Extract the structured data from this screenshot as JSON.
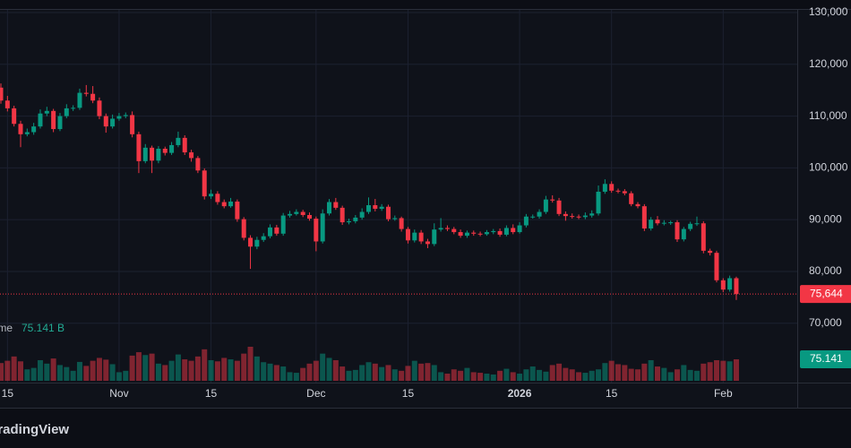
{
  "chart_data": {
    "type": "candlestick",
    "categories": [
      "Oct 14",
      "Oct 15",
      "Oct 16",
      "Oct 17",
      "Oct 18",
      "Oct 19",
      "Oct 20",
      "Oct 21",
      "Oct 22",
      "Oct 23",
      "Oct 24",
      "Oct 25",
      "Oct 26",
      "Oct 27",
      "Oct 28",
      "Oct 29",
      "Oct 30",
      "Oct 31",
      "Nov 1",
      "Nov 2",
      "Nov 3",
      "Nov 4",
      "Nov 5",
      "Nov 6",
      "Nov 7",
      "Nov 8",
      "Nov 9",
      "Nov 10",
      "Nov 11",
      "Nov 12",
      "Nov 13",
      "Nov 14",
      "Nov 15",
      "Nov 16",
      "Nov 17",
      "Nov 18",
      "Nov 19",
      "Nov 20",
      "Nov 21",
      "Nov 22",
      "Nov 23",
      "Nov 24",
      "Nov 25",
      "Nov 26",
      "Nov 27",
      "Nov 28",
      "Nov 29",
      "Nov 30",
      "Dec 1",
      "Dec 2",
      "Dec 3",
      "Dec 4",
      "Dec 5",
      "Dec 6",
      "Dec 7",
      "Dec 8",
      "Dec 9",
      "Dec 10",
      "Dec 11",
      "Dec 12",
      "Dec 13",
      "Dec 14",
      "Dec 15",
      "Dec 16",
      "Dec 17",
      "Dec 18",
      "Dec 19",
      "Dec 20",
      "Dec 21",
      "Dec 22",
      "Dec 23",
      "Dec 24",
      "Dec 25",
      "Dec 26",
      "Dec 27",
      "Dec 28",
      "Dec 29",
      "Dec 30",
      "Dec 31",
      "Jan 1",
      "Jan 2",
      "Jan 3",
      "Jan 4",
      "Jan 5",
      "Jan 6",
      "Jan 7",
      "Jan 8",
      "Jan 9",
      "Jan 10",
      "Jan 11",
      "Jan 12",
      "Jan 13",
      "Jan 14",
      "Jan 15",
      "Jan 16",
      "Jan 17",
      "Jan 18",
      "Jan 19",
      "Jan 20",
      "Jan 21",
      "Jan 22",
      "Jan 23",
      "Jan 24",
      "Jan 25",
      "Jan 26",
      "Jan 27",
      "Jan 28",
      "Jan 29",
      "Jan 30",
      "Jan 31",
      "Feb 1",
      "Feb 2",
      "Feb 3"
    ],
    "open": [
      115500,
      113000,
      111500,
      108500,
      106500,
      106900,
      108000,
      110500,
      111000,
      107500,
      110000,
      111500,
      111600,
      114500,
      114300,
      113000,
      110000,
      108000,
      109500,
      110000,
      110200,
      106500,
      101300,
      103900,
      101400,
      103700,
      102900,
      104400,
      105800,
      103000,
      101900,
      99500,
      94500,
      95000,
      93400,
      92600,
      93500,
      90100,
      86500,
      84800,
      86100,
      86800,
      88500,
      87300,
      90800,
      91100,
      91500,
      90900,
      90200,
      85800,
      91200,
      93400,
      92300,
      89500,
      89700,
      90400,
      91500,
      92800,
      92100,
      92500,
      90100,
      90300,
      88200,
      86000,
      87500,
      85800,
      85300,
      88100,
      88400,
      88200,
      87600,
      86900,
      87500,
      87300,
      87200,
      87600,
      87800,
      87100,
      88400,
      87600,
      88900,
      90600,
      90600,
      91500,
      93900,
      93700,
      91100,
      90700,
      90600,
      90500,
      90800,
      91200,
      95400,
      96900,
      95600,
      95500,
      95100,
      93000,
      92600,
      88300,
      90000,
      89300,
      89400,
      89500,
      86200,
      88200,
      89200,
      89300,
      84000,
      83600,
      78300,
      76500,
      78700
    ],
    "high": [
      116300,
      113900,
      112000,
      109100,
      107600,
      108700,
      111300,
      111800,
      111400,
      110600,
      112300,
      112100,
      115300,
      116000,
      115800,
      113600,
      110500,
      110300,
      110600,
      110700,
      110900,
      107000,
      104600,
      104300,
      104200,
      104100,
      105000,
      107000,
      106300,
      103500,
      102300,
      99900,
      95800,
      95500,
      93900,
      94200,
      93900,
      90500,
      87000,
      86700,
      87400,
      89100,
      89000,
      91300,
      91700,
      92000,
      91900,
      91400,
      90600,
      92000,
      94000,
      94200,
      92700,
      90200,
      90900,
      92200,
      94300,
      94000,
      93000,
      92900,
      90800,
      90600,
      88600,
      88100,
      88000,
      86300,
      89300,
      90300,
      88900,
      88600,
      88100,
      87900,
      87900,
      87700,
      88000,
      88200,
      88300,
      88900,
      89100,
      89500,
      91100,
      91000,
      92000,
      94600,
      94700,
      94200,
      91600,
      91200,
      91000,
      91400,
      91800,
      96600,
      97800,
      97400,
      96000,
      95900,
      95500,
      93400,
      93000,
      90500,
      90700,
      89900,
      89800,
      89900,
      88600,
      89600,
      90600,
      89700,
      84400,
      84000,
      78700,
      79200,
      79000
    ],
    "low": [
      112400,
      110900,
      108000,
      104000,
      106100,
      106400,
      107600,
      110000,
      106900,
      107100,
      109600,
      111000,
      111200,
      113800,
      112500,
      109400,
      106800,
      107600,
      109100,
      109600,
      105900,
      99000,
      100900,
      99000,
      100900,
      102400,
      102500,
      104000,
      102500,
      101200,
      99000,
      93900,
      94000,
      92900,
      92200,
      92300,
      89600,
      86000,
      80500,
      84300,
      85700,
      86400,
      86900,
      86900,
      90400,
      90800,
      90500,
      89800,
      83900,
      85400,
      90800,
      91900,
      89000,
      89100,
      89300,
      90000,
      91100,
      91600,
      91700,
      89700,
      89800,
      87700,
      85400,
      85600,
      85300,
      84500,
      84900,
      87700,
      87800,
      87200,
      86500,
      86500,
      86900,
      86800,
      86900,
      87200,
      86700,
      86800,
      87200,
      87300,
      88500,
      90200,
      90200,
      91100,
      93300,
      90700,
      89800,
      90200,
      90100,
      90100,
      90400,
      90800,
      95000,
      95200,
      95100,
      94700,
      92600,
      92200,
      87800,
      87900,
      88900,
      88900,
      89000,
      85700,
      85800,
      87800,
      88800,
      83500,
      83100,
      77900,
      76000,
      76100,
      74500
    ],
    "close": [
      113000,
      111500,
      108500,
      106500,
      106900,
      108000,
      110500,
      111000,
      107500,
      110000,
      111500,
      111600,
      114500,
      114300,
      113000,
      110000,
      108000,
      109500,
      110000,
      110200,
      106500,
      101300,
      103900,
      101400,
      103700,
      102900,
      104400,
      105800,
      103000,
      101900,
      99500,
      94500,
      95000,
      93400,
      92600,
      93500,
      90100,
      86500,
      84800,
      86100,
      86800,
      88500,
      87300,
      90800,
      91100,
      91500,
      90900,
      90200,
      85800,
      91200,
      93400,
      92300,
      89500,
      89700,
      90400,
      91500,
      92800,
      92100,
      92500,
      90100,
      90300,
      88200,
      86000,
      87500,
      85800,
      85300,
      88100,
      88400,
      88200,
      87600,
      86900,
      87500,
      87300,
      87200,
      87600,
      87800,
      87100,
      88400,
      87600,
      88900,
      90600,
      90600,
      91500,
      93900,
      93700,
      91100,
      90700,
      90600,
      90500,
      90800,
      91200,
      95400,
      96900,
      95600,
      95500,
      95100,
      93000,
      92600,
      88300,
      90000,
      89300,
      89400,
      89500,
      86200,
      88200,
      89200,
      89300,
      84000,
      83600,
      78300,
      76500,
      78700,
      75644
    ],
    "last_close_label": "75,644",
    "volume": [
      62,
      70,
      85,
      68,
      40,
      45,
      72,
      60,
      78,
      55,
      48,
      35,
      66,
      52,
      70,
      80,
      74,
      58,
      30,
      35,
      88,
      100,
      90,
      95,
      60,
      55,
      70,
      92,
      75,
      70,
      85,
      110,
      72,
      68,
      80,
      75,
      70,
      95,
      119,
      85,
      65,
      60,
      55,
      50,
      30,
      28,
      45,
      60,
      70,
      95,
      80,
      72,
      50,
      35,
      38,
      55,
      65,
      60,
      48,
      55,
      40,
      35,
      52,
      70,
      60,
      62,
      55,
      30,
      25,
      40,
      35,
      45,
      30,
      28,
      25,
      22,
      35,
      42,
      30,
      25,
      40,
      50,
      38,
      32,
      55,
      60,
      45,
      40,
      30,
      28,
      35,
      40,
      62,
      70,
      58,
      55,
      42,
      40,
      60,
      72,
      50,
      45,
      30,
      40,
      55,
      38,
      35,
      60,
      65,
      72,
      70,
      68,
      75.141
    ],
    "volume_title": "Volume",
    "volume_legend_value": "75.141 B",
    "volume_axis_label": "75.141",
    "ylim": [
      67540,
      132420
    ],
    "yticks": [
      {
        "value": 70000,
        "label": "70,000"
      },
      {
        "value": 80000,
        "label": "80,000"
      },
      {
        "value": 90000,
        "label": "90,000"
      },
      {
        "value": 100000,
        "label": "100,000"
      },
      {
        "value": 110000,
        "label": "110,000"
      },
      {
        "value": 120000,
        "label": "120,000"
      },
      {
        "value": 130000,
        "label": "130,000"
      }
    ],
    "xticks": [
      {
        "value": "Oct 15",
        "label": "15"
      },
      {
        "value": "Nov 1",
        "label": "Nov"
      },
      {
        "value": "Nov 15",
        "label": "15"
      },
      {
        "value": "Dec 1",
        "label": "Dec"
      },
      {
        "value": "Dec 15",
        "label": "15"
      },
      {
        "value": "Jan 1",
        "label": "2026"
      },
      {
        "value": "Jan 15",
        "label": "15"
      },
      {
        "value": "Feb 1",
        "label": "Feb"
      }
    ],
    "grid": true,
    "up_color": "#089981",
    "down_color": "#f23645",
    "watermark": "TradingView"
  }
}
